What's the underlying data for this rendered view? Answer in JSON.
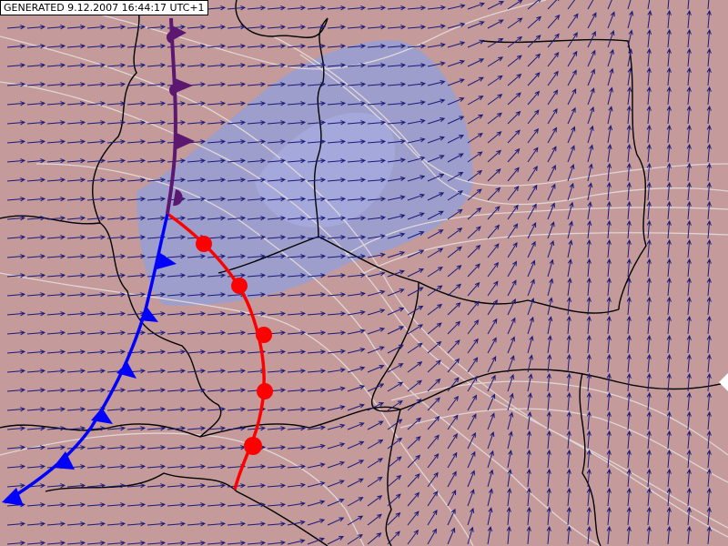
{
  "header": {
    "label": "GENERATED 9.12.2007 16:44:17 UTC+1"
  }
}
